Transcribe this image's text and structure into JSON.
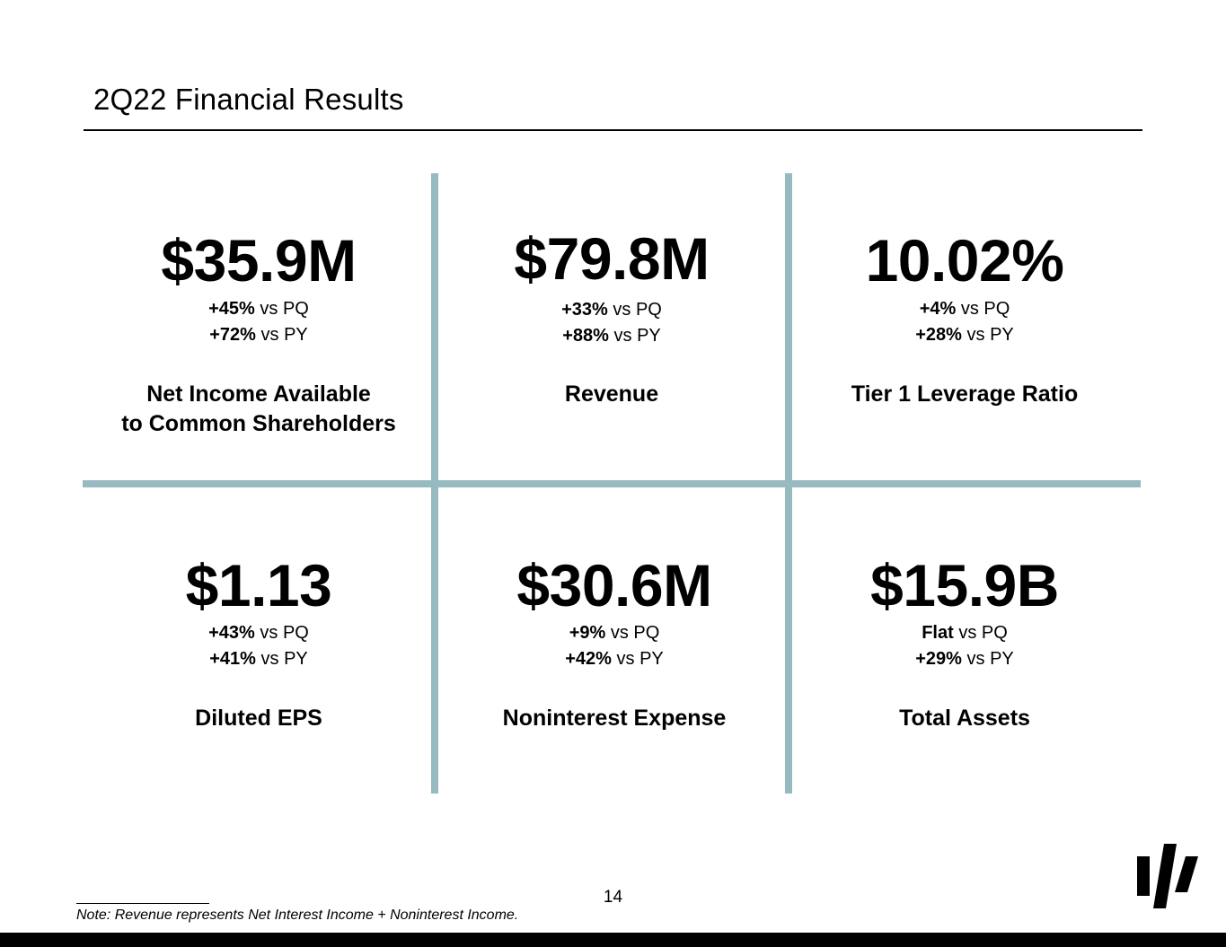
{
  "page": {
    "title": "2Q22 Financial Results",
    "page_number": "14",
    "footnote": "Note: Revenue represents Net Interest Income + Noninterest Income.",
    "accent_color": "#97bac0"
  },
  "metrics": [
    {
      "value": "$35.9M",
      "pq_change": "+45%",
      "pq_label": "vs PQ",
      "py_change": "+72%",
      "py_label": "vs PY",
      "label_line1": "Net Income Available",
      "label_line2": "to Common Shareholders"
    },
    {
      "value": "$79.8M",
      "pq_change": "+33%",
      "pq_label": "vs PQ",
      "py_change": "+88%",
      "py_label": "vs PY",
      "label_line1": "Revenue",
      "label_line2": ""
    },
    {
      "value": "10.02%",
      "pq_change": "+4%",
      "pq_label": "vs PQ",
      "py_change": "+28%",
      "py_label": "vs PY",
      "label_line1": "Tier 1 Leverage Ratio",
      "label_line2": ""
    },
    {
      "value": "$1.13",
      "pq_change": "+43%",
      "pq_label": "vs PQ",
      "py_change": "+41%",
      "py_label": "vs PY",
      "label_line1": "Diluted EPS",
      "label_line2": ""
    },
    {
      "value": "$30.6M",
      "pq_change": "+9%",
      "pq_label": "vs PQ",
      "py_change": "+42%",
      "py_label": "vs PY",
      "label_line1": "Noninterest Expense",
      "label_line2": ""
    },
    {
      "value": "$15.9B",
      "pq_change": "Flat",
      "pq_label": "vs PQ",
      "py_change": "+29%",
      "py_label": "vs PY",
      "label_line1": "Total Assets",
      "label_line2": ""
    }
  ],
  "logo": {
    "icon": "company-logo-icon"
  }
}
